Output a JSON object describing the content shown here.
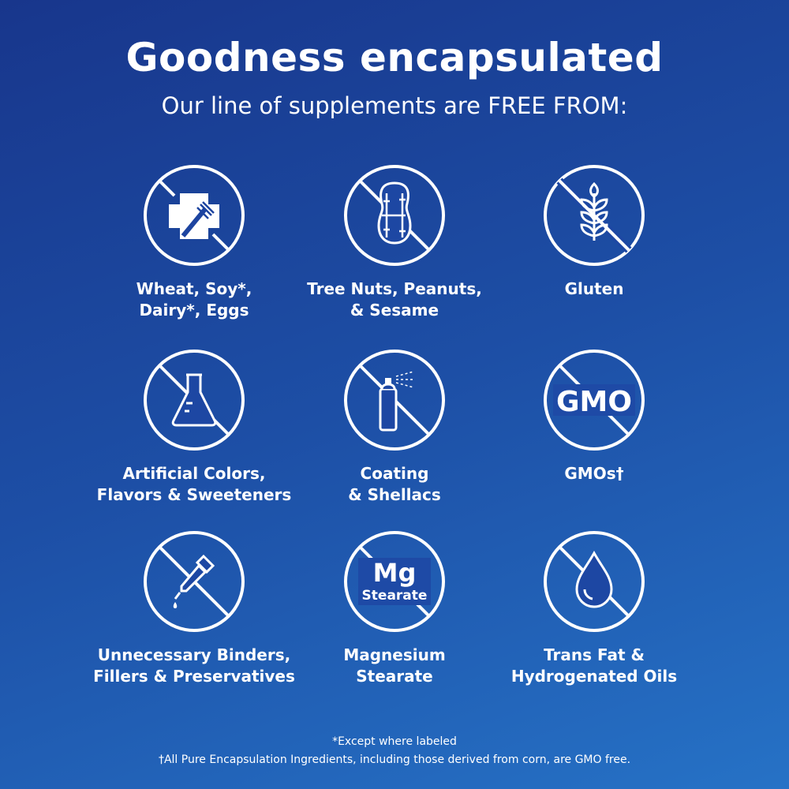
{
  "header": {
    "title": "Goodness encapsulated",
    "subtitle": "Our line of supplements are FREE FROM:"
  },
  "items": [
    {
      "icon": "no-allergen-cross-fork-icon",
      "line1": "Wheat, Soy*,",
      "line2": "Dairy*, Eggs"
    },
    {
      "icon": "no-peanut-icon",
      "line1": "Tree Nuts, Peanuts,",
      "line2": "& Sesame"
    },
    {
      "icon": "no-wheat-icon",
      "line1": "Gluten",
      "line2": ""
    },
    {
      "icon": "no-flask-icon",
      "line1": "Artificial Colors,",
      "line2": "Flavors & Sweeteners"
    },
    {
      "icon": "no-spray-can-icon",
      "line1": "Coating",
      "line2": "& Shellacs"
    },
    {
      "icon": "no-gmo-icon",
      "icon_text": "GMO",
      "line1": "GMOs†",
      "line2": ""
    },
    {
      "icon": "no-dropper-icon",
      "line1": "Unnecessary Binders,",
      "line2": "Fillers & Preservatives"
    },
    {
      "icon": "no-mg-stearate-icon",
      "icon_text": "Mg",
      "icon_subtext": "Stearate",
      "line1": "Magnesium",
      "line2": "Stearate"
    },
    {
      "icon": "no-oil-drop-icon",
      "line1": "Trans Fat &",
      "line2": "Hydrogenated Oils"
    }
  ],
  "footnotes": {
    "note1": "*Except where labeled",
    "note2": "†All Pure Encapsulation Ingredients, including those derived from corn, are GMO free."
  },
  "colors": {
    "background_start": "#18368c",
    "background_end": "#2672c6",
    "foreground": "#ffffff"
  }
}
